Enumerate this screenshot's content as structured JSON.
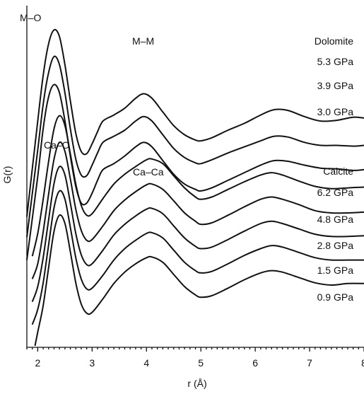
{
  "chart_data": {
    "type": "line",
    "xlabel": "r (Å)",
    "ylabel": "G(r)",
    "xlim": [
      1.8,
      8
    ],
    "x_ticks": [
      "2",
      "3",
      "4",
      "5",
      "6",
      "7",
      "8"
    ],
    "groups": [
      {
        "name": "Dolomite",
        "peak_labels": [
          "M–O",
          "M–M"
        ],
        "series": [
          {
            "name": "5.3 GPa",
            "x": [
              1.8,
              2.0,
              2.1,
              2.2,
              2.3,
              2.4,
              2.5,
              2.6,
              2.7,
              2.8,
              2.9,
              3.0,
              3.1,
              3.2,
              3.4,
              3.6,
              3.8,
              3.95,
              4.1,
              4.3,
              4.5,
              4.7,
              4.9,
              5.0,
              5.2,
              5.5,
              5.8,
              6.1,
              6.35,
              6.6,
              6.9,
              7.2,
              7.5,
              7.8,
              8.0
            ],
            "y": [
              1.72,
              2.98,
              3.58,
              4.0,
              4.18,
              4.09,
              3.72,
              3.25,
              2.82,
              2.58,
              2.55,
              2.68,
              2.84,
              2.98,
              3.06,
              3.15,
              3.28,
              3.34,
              3.28,
              3.1,
              2.92,
              2.8,
              2.73,
              2.72,
              2.76,
              2.86,
              2.95,
              3.06,
              3.13,
              3.12,
              3.04,
              2.98,
              2.99,
              3.03,
              3.02
            ]
          },
          {
            "name": "3.9 GPa",
            "x": [
              1.8,
              2.0,
              2.1,
              2.2,
              2.3,
              2.4,
              2.5,
              2.6,
              2.7,
              2.8,
              2.9,
              3.0,
              3.1,
              3.2,
              3.4,
              3.6,
              3.8,
              3.95,
              4.1,
              4.3,
              4.5,
              4.7,
              4.9,
              5.0,
              5.2,
              5.5,
              5.8,
              6.1,
              6.35,
              6.6,
              6.9,
              7.2,
              7.5,
              7.8,
              8.0
            ],
            "y": [
              1.45,
              2.6,
              3.2,
              3.62,
              3.83,
              3.72,
              3.35,
              2.88,
              2.48,
              2.27,
              2.26,
              2.4,
              2.56,
              2.7,
              2.78,
              2.86,
              2.98,
              3.04,
              2.98,
              2.8,
              2.62,
              2.5,
              2.43,
              2.42,
              2.47,
              2.56,
              2.64,
              2.72,
              2.78,
              2.77,
              2.7,
              2.66,
              2.66,
              2.65,
              2.66
            ]
          },
          {
            "name": "3.0 GPa",
            "x": [
              1.8,
              2.0,
              2.1,
              2.2,
              2.3,
              2.4,
              2.5,
              2.6,
              2.7,
              2.8,
              2.9,
              3.0,
              3.1,
              3.2,
              3.4,
              3.6,
              3.8,
              3.95,
              4.1,
              4.3,
              4.5,
              4.7,
              4.9,
              5.0,
              5.2,
              5.5,
              5.8,
              6.1,
              6.35,
              6.6,
              6.9,
              7.2,
              7.5,
              7.8,
              8.0
            ],
            "y": [
              1.15,
              2.25,
              2.88,
              3.3,
              3.46,
              3.35,
              2.98,
              2.52,
              2.12,
              1.9,
              1.9,
              2.03,
              2.2,
              2.34,
              2.42,
              2.52,
              2.64,
              2.7,
              2.64,
              2.46,
              2.28,
              2.15,
              2.08,
              2.06,
              2.1,
              2.2,
              2.3,
              2.4,
              2.46,
              2.45,
              2.4,
              2.36,
              2.35,
              2.33,
              2.34
            ]
          }
        ]
      },
      {
        "name": "Calcite",
        "peak_labels": [
          "Ca–O",
          "Ca–Ca"
        ],
        "series": [
          {
            "name": "6.2 GPa",
            "x": [
              1.9,
              2.0,
              2.1,
              2.2,
              2.3,
              2.4,
              2.5,
              2.6,
              2.7,
              2.8,
              2.9,
              3.0,
              3.2,
              3.4,
              3.6,
              3.8,
              4.0,
              4.1,
              4.3,
              4.5,
              4.7,
              4.9,
              5.0,
              5.2,
              5.5,
              5.8,
              6.1,
              6.3,
              6.5,
              6.8,
              7.1,
              7.4,
              7.7,
              8.0
            ],
            "y": [
              1.2,
              1.5,
              1.95,
              2.45,
              2.88,
              3.05,
              2.92,
              2.55,
              2.15,
              1.87,
              1.74,
              1.76,
              1.96,
              2.15,
              2.28,
              2.38,
              2.47,
              2.48,
              2.42,
              2.26,
              2.1,
              1.98,
              1.95,
              1.98,
              2.08,
              2.18,
              2.27,
              2.3,
              2.27,
              2.19,
              2.12,
              2.09,
              2.1,
              2.11
            ]
          },
          {
            "name": "4.8 GPa",
            "x": [
              1.9,
              2.0,
              2.1,
              2.2,
              2.3,
              2.4,
              2.5,
              2.6,
              2.7,
              2.8,
              2.9,
              3.0,
              3.2,
              3.4,
              3.6,
              3.8,
              4.0,
              4.1,
              4.3,
              4.5,
              4.7,
              4.9,
              5.0,
              5.2,
              5.5,
              5.8,
              6.1,
              6.3,
              6.5,
              6.8,
              7.1,
              7.4,
              7.7,
              8.0
            ],
            "y": [
              0.9,
              1.1,
              1.52,
              2.02,
              2.48,
              2.7,
              2.58,
              2.22,
              1.82,
              1.54,
              1.41,
              1.42,
              1.6,
              1.8,
              1.94,
              2.05,
              2.14,
              2.15,
              2.08,
              1.93,
              1.77,
              1.66,
              1.62,
              1.64,
              1.74,
              1.85,
              1.95,
              1.98,
              1.95,
              1.88,
              1.8,
              1.77,
              1.77,
              1.78
            ]
          },
          {
            "name": "2.8 GPa",
            "x": [
              1.9,
              2.0,
              2.1,
              2.2,
              2.3,
              2.4,
              2.5,
              2.6,
              2.7,
              2.8,
              2.9,
              3.0,
              3.2,
              3.4,
              3.6,
              3.8,
              4.0,
              4.1,
              4.3,
              4.5,
              4.7,
              4.9,
              5.0,
              5.2,
              5.5,
              5.8,
              6.1,
              6.3,
              6.5,
              6.8,
              7.1,
              7.4,
              7.7,
              8.0
            ],
            "y": [
              0.6,
              0.8,
              1.18,
              1.68,
              2.16,
              2.38,
              2.27,
              1.9,
              1.5,
              1.22,
              1.09,
              1.1,
              1.28,
              1.48,
              1.62,
              1.73,
              1.82,
              1.83,
              1.76,
              1.6,
              1.44,
              1.33,
              1.3,
              1.32,
              1.42,
              1.53,
              1.63,
              1.66,
              1.63,
              1.56,
              1.49,
              1.46,
              1.46,
              1.47
            ]
          },
          {
            "name": "1.5 GPa",
            "x": [
              1.9,
              2.0,
              2.1,
              2.2,
              2.3,
              2.4,
              2.5,
              2.6,
              2.7,
              2.8,
              2.9,
              3.0,
              3.2,
              3.4,
              3.6,
              3.8,
              4.0,
              4.1,
              4.3,
              4.5,
              4.7,
              4.9,
              5.0,
              5.2,
              5.5,
              5.8,
              6.1,
              6.3,
              6.5,
              6.8,
              7.1,
              7.4,
              7.7,
              8.0
            ],
            "y": [
              0.3,
              0.5,
              0.85,
              1.35,
              1.84,
              2.06,
              1.95,
              1.58,
              1.18,
              0.9,
              0.77,
              0.78,
              0.95,
              1.15,
              1.3,
              1.41,
              1.5,
              1.51,
              1.44,
              1.28,
              1.12,
              1.01,
              0.98,
              1.0,
              1.1,
              1.21,
              1.3,
              1.34,
              1.32,
              1.25,
              1.18,
              1.15,
              1.15,
              1.15
            ]
          },
          {
            "name": "0.9 GPa",
            "x": [
              1.95,
              2.0,
              2.1,
              2.2,
              2.3,
              2.4,
              2.5,
              2.6,
              2.7,
              2.8,
              2.9,
              3.0,
              3.2,
              3.4,
              3.6,
              3.8,
              4.0,
              4.1,
              4.3,
              4.5,
              4.7,
              4.9,
              5.0,
              5.2,
              5.5,
              5.8,
              6.1,
              6.3,
              6.5,
              6.8,
              7.1,
              7.4,
              7.7,
              8.0
            ],
            "y": [
              0.02,
              0.2,
              0.55,
              1.05,
              1.53,
              1.74,
              1.63,
              1.26,
              0.85,
              0.57,
              0.45,
              0.46,
              0.64,
              0.84,
              0.99,
              1.1,
              1.18,
              1.19,
              1.12,
              0.96,
              0.8,
              0.69,
              0.66,
              0.68,
              0.78,
              0.89,
              0.98,
              1.01,
              0.99,
              0.92,
              0.85,
              0.82,
              0.84,
              0.84
            ]
          }
        ]
      }
    ]
  }
}
